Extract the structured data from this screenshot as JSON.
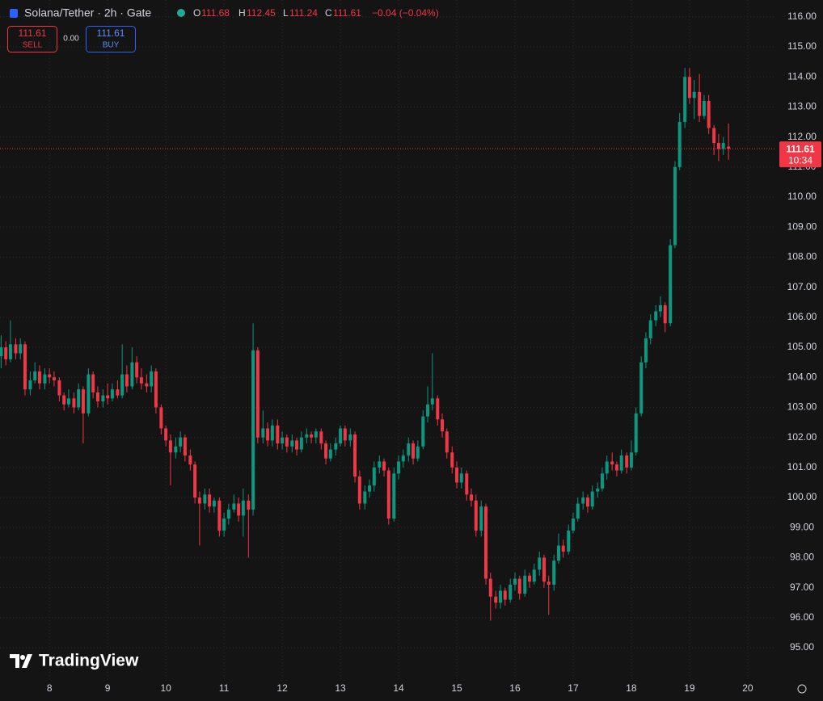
{
  "header": {
    "symbol": "Solana/Tether · 2h · Gate",
    "o_label": "O",
    "open": "111.68",
    "h_label": "H",
    "high": "112.45",
    "l_label": "L",
    "low": "111.24",
    "c_label": "C",
    "close": "111.61",
    "change": "−0.04 (−0.04%)",
    "sell_price": "111.61",
    "sell": "SELL",
    "spread": "0.00",
    "buy_price": "111.61",
    "buy": "BUY",
    "logo": "TradingView"
  },
  "chart_data": {
    "type": "candlestick",
    "up_color": "#089981",
    "down_color": "#f23645",
    "grid": true,
    "xlim": [
      7.15,
      20.46
    ],
    "ylim": [
      93.9,
      116.56
    ],
    "xticks": [
      8,
      9,
      10,
      11,
      12,
      13,
      14,
      15,
      16,
      17,
      18,
      19,
      20
    ],
    "yticks": [
      {
        "value": 95,
        "label": "95.00"
      },
      {
        "value": 96,
        "label": "96.00"
      },
      {
        "value": 97,
        "label": "97.00"
      },
      {
        "value": 98,
        "label": "98.00"
      },
      {
        "value": 99,
        "label": "99.00"
      },
      {
        "value": 100,
        "label": "100.00"
      },
      {
        "value": 101,
        "label": "101.00"
      },
      {
        "value": 102,
        "label": "102.00"
      },
      {
        "value": 103,
        "label": "103.00"
      },
      {
        "value": 104,
        "label": "104.00"
      },
      {
        "value": 105,
        "label": "105.00"
      },
      {
        "value": 106,
        "label": "106.00"
      },
      {
        "value": 107,
        "label": "107.00"
      },
      {
        "value": 108,
        "label": "108.00"
      },
      {
        "value": 109,
        "label": "109.00"
      },
      {
        "value": 110,
        "label": "110.00"
      },
      {
        "value": 111,
        "label": "111.00"
      },
      {
        "value": 112,
        "label": "112.00"
      },
      {
        "value": 113,
        "label": "113.00"
      },
      {
        "value": 114,
        "label": "114.00"
      },
      {
        "value": 115,
        "label": "115.00"
      },
      {
        "value": 116,
        "label": "116.00"
      }
    ],
    "last_price": {
      "value": 111.61,
      "label": "111.61"
    },
    "countdown": "10:34",
    "x": [
      7.17,
      7.25,
      7.33,
      7.42,
      7.5,
      7.58,
      7.67,
      7.75,
      7.83,
      7.92,
      8,
      8.08,
      8.17,
      8.25,
      8.33,
      8.42,
      8.5,
      8.58,
      8.67,
      8.75,
      8.83,
      8.92,
      9,
      9.08,
      9.17,
      9.25,
      9.33,
      9.42,
      9.5,
      9.58,
      9.67,
      9.75,
      9.83,
      9.92,
      10,
      10.08,
      10.17,
      10.25,
      10.33,
      10.42,
      10.5,
      10.58,
      10.67,
      10.75,
      10.83,
      10.92,
      11,
      11.08,
      11.17,
      11.25,
      11.33,
      11.42,
      11.5,
      11.58,
      11.67,
      11.75,
      11.83,
      11.92,
      12,
      12.08,
      12.17,
      12.25,
      12.33,
      12.42,
      12.5,
      12.58,
      12.67,
      12.75,
      12.83,
      12.92,
      13,
      13.08,
      13.17,
      13.25,
      13.33,
      13.42,
      13.5,
      13.58,
      13.67,
      13.75,
      13.83,
      13.92,
      14,
      14.08,
      14.17,
      14.25,
      14.33,
      14.42,
      14.5,
      14.58,
      14.67,
      14.75,
      14.83,
      14.92,
      15,
      15.08,
      15.17,
      15.25,
      15.33,
      15.42,
      15.5,
      15.58,
      15.67,
      15.75,
      15.83,
      15.92,
      16,
      16.08,
      16.17,
      16.25,
      16.33,
      16.42,
      16.5,
      16.58,
      16.67,
      16.75,
      16.83,
      16.92,
      17,
      17.08,
      17.17,
      17.25,
      17.33,
      17.42,
      17.5,
      17.58,
      17.67,
      17.75,
      17.83,
      17.92,
      18,
      18.08,
      18.17,
      18.25,
      18.33,
      18.42,
      18.5,
      18.58,
      18.67,
      18.75,
      18.83,
      18.92,
      19,
      19.08,
      19.17,
      19.25,
      19.33,
      19.42,
      19.5,
      19.58,
      19.67
    ],
    "ohlc": [
      [
        104.7,
        105.4,
        104.3,
        105.0
      ],
      [
        105.0,
        105.2,
        104.4,
        104.6
      ],
      [
        104.6,
        105.9,
        104.5,
        105.1
      ],
      [
        105.1,
        105.3,
        104.6,
        104.8
      ],
      [
        104.8,
        105.3,
        104.6,
        105.1
      ],
      [
        105.1,
        105.2,
        103.4,
        103.6
      ],
      [
        103.6,
        104.2,
        103.4,
        103.9
      ],
      [
        103.9,
        104.5,
        103.8,
        104.2
      ],
      [
        104.2,
        104.4,
        103.6,
        103.8
      ],
      [
        103.8,
        104.3,
        103.6,
        104.1
      ],
      [
        104.1,
        104.3,
        103.8,
        104.0
      ],
      [
        104.0,
        104.2,
        103.7,
        103.9
      ],
      [
        103.9,
        104.0,
        103.2,
        103.4
      ],
      [
        103.4,
        103.5,
        102.9,
        103.1
      ],
      [
        103.1,
        103.6,
        103.0,
        103.3
      ],
      [
        103.3,
        103.5,
        102.8,
        103.0
      ],
      [
        103.0,
        103.8,
        102.9,
        103.6
      ],
      [
        103.6,
        103.7,
        101.8,
        102.8
      ],
      [
        102.8,
        104.3,
        102.7,
        104.1
      ],
      [
        104.1,
        104.2,
        103.3,
        103.5
      ],
      [
        103.5,
        103.7,
        103.0,
        103.2
      ],
      [
        103.2,
        103.6,
        103.0,
        103.4
      ],
      [
        103.4,
        103.8,
        103.1,
        103.3
      ],
      [
        103.3,
        103.8,
        103.2,
        103.6
      ],
      [
        103.6,
        103.9,
        103.3,
        103.4
      ],
      [
        103.4,
        105.1,
        103.3,
        104.1
      ],
      [
        104.1,
        104.4,
        103.5,
        103.7
      ],
      [
        103.7,
        105.0,
        103.6,
        104.5
      ],
      [
        104.5,
        104.7,
        103.8,
        104.0
      ],
      [
        104.0,
        104.3,
        103.6,
        103.8
      ],
      [
        103.8,
        104.1,
        103.5,
        103.7
      ],
      [
        103.7,
        104.4,
        103.5,
        104.2
      ],
      [
        104.2,
        104.3,
        102.8,
        103.0
      ],
      [
        103.0,
        103.1,
        102.1,
        102.3
      ],
      [
        102.3,
        102.4,
        101.7,
        101.9
      ],
      [
        101.9,
        102.1,
        100.4,
        101.5
      ],
      [
        101.5,
        102.0,
        101.3,
        101.7
      ],
      [
        101.7,
        102.2,
        101.5,
        102.0
      ],
      [
        102.0,
        102.1,
        101.2,
        101.4
      ],
      [
        101.4,
        101.6,
        100.9,
        101.1
      ],
      [
        101.1,
        101.2,
        99.8,
        100.0
      ],
      [
        100.0,
        100.2,
        98.4,
        99.8
      ],
      [
        99.8,
        100.3,
        99.6,
        100.1
      ],
      [
        100.1,
        100.3,
        99.5,
        99.7
      ],
      [
        99.7,
        100.0,
        99.5,
        99.9
      ],
      [
        99.9,
        100.0,
        98.7,
        98.9
      ],
      [
        98.9,
        99.5,
        98.7,
        99.3
      ],
      [
        99.3,
        99.8,
        99.1,
        99.6
      ],
      [
        99.6,
        100.1,
        99.5,
        99.8
      ],
      [
        99.8,
        100.0,
        99.2,
        99.4
      ],
      [
        99.4,
        100.3,
        98.7,
        99.9
      ],
      [
        99.9,
        100.1,
        98.0,
        99.6
      ],
      [
        99.6,
        105.8,
        99.4,
        104.9
      ],
      [
        104.9,
        105.0,
        101.8,
        102.0
      ],
      [
        102.0,
        102.9,
        101.8,
        102.3
      ],
      [
        102.3,
        102.5,
        101.7,
        101.9
      ],
      [
        101.9,
        102.6,
        101.7,
        102.4
      ],
      [
        102.4,
        102.6,
        101.6,
        101.8
      ],
      [
        101.8,
        102.2,
        101.6,
        102.0
      ],
      [
        102.0,
        102.1,
        101.5,
        101.7
      ],
      [
        101.7,
        102.1,
        101.5,
        101.9
      ],
      [
        101.9,
        102.0,
        101.4,
        101.6
      ],
      [
        101.6,
        102.2,
        101.5,
        102.0
      ],
      [
        102.0,
        102.3,
        101.8,
        102.1
      ],
      [
        102.1,
        102.2,
        101.8,
        102.0
      ],
      [
        102.0,
        102.3,
        101.8,
        102.2
      ],
      [
        102.2,
        102.3,
        101.6,
        101.8
      ],
      [
        101.8,
        101.9,
        101.1,
        101.3
      ],
      [
        101.3,
        101.8,
        101.2,
        101.6
      ],
      [
        101.6,
        102.0,
        101.4,
        101.8
      ],
      [
        101.8,
        102.4,
        101.7,
        102.3
      ],
      [
        102.3,
        102.4,
        101.7,
        101.9
      ],
      [
        101.9,
        102.3,
        101.7,
        102.1
      ],
      [
        102.1,
        102.2,
        100.5,
        100.7
      ],
      [
        100.7,
        100.9,
        99.6,
        99.8
      ],
      [
        99.8,
        100.4,
        99.6,
        100.2
      ],
      [
        100.2,
        100.6,
        100.0,
        100.4
      ],
      [
        100.4,
        101.2,
        100.2,
        101.0
      ],
      [
        101.0,
        101.4,
        100.8,
        101.2
      ],
      [
        101.2,
        101.3,
        100.7,
        100.9
      ],
      [
        100.9,
        101.0,
        99.1,
        99.3
      ],
      [
        99.3,
        101.0,
        99.2,
        100.8
      ],
      [
        100.8,
        101.4,
        100.6,
        101.2
      ],
      [
        101.2,
        101.6,
        101.0,
        101.4
      ],
      [
        101.4,
        102.0,
        101.2,
        101.8
      ],
      [
        101.8,
        101.9,
        101.1,
        101.3
      ],
      [
        101.3,
        101.9,
        101.2,
        101.7
      ],
      [
        101.7,
        102.9,
        101.6,
        102.7
      ],
      [
        102.7,
        103.7,
        102.5,
        103.1
      ],
      [
        103.1,
        104.8,
        102.9,
        103.3
      ],
      [
        103.3,
        103.4,
        102.4,
        102.6
      ],
      [
        102.6,
        102.8,
        102.0,
        102.2
      ],
      [
        102.2,
        102.3,
        101.3,
        101.5
      ],
      [
        101.5,
        101.7,
        100.8,
        101.0
      ],
      [
        101.0,
        101.2,
        100.3,
        100.5
      ],
      [
        100.5,
        101.0,
        100.3,
        100.8
      ],
      [
        100.8,
        100.9,
        99.9,
        100.1
      ],
      [
        100.1,
        100.3,
        99.7,
        99.9
      ],
      [
        99.9,
        100.1,
        98.7,
        98.9
      ],
      [
        98.9,
        99.9,
        98.7,
        99.7
      ],
      [
        99.7,
        99.8,
        97.1,
        97.3
      ],
      [
        97.3,
        97.5,
        95.9,
        96.7
      ],
      [
        96.7,
        96.9,
        96.3,
        96.5
      ],
      [
        96.5,
        97.1,
        96.3,
        96.9
      ],
      [
        96.9,
        97.0,
        96.4,
        96.6
      ],
      [
        96.6,
        97.3,
        96.5,
        97.1
      ],
      [
        97.1,
        97.5,
        96.9,
        97.3
      ],
      [
        97.3,
        97.4,
        96.6,
        96.8
      ],
      [
        96.8,
        97.6,
        96.7,
        97.4
      ],
      [
        97.4,
        97.5,
        97.0,
        97.2
      ],
      [
        97.2,
        97.8,
        97.1,
        97.6
      ],
      [
        97.6,
        98.2,
        97.4,
        98.0
      ],
      [
        98.0,
        98.1,
        97.0,
        97.2
      ],
      [
        97.2,
        97.4,
        96.1,
        97.1
      ],
      [
        97.1,
        98.1,
        96.9,
        97.9
      ],
      [
        97.9,
        98.8,
        97.8,
        98.4
      ],
      [
        98.4,
        98.6,
        98.0,
        98.2
      ],
      [
        98.2,
        99.1,
        98.1,
        98.9
      ],
      [
        98.9,
        99.5,
        98.8,
        99.3
      ],
      [
        99.3,
        100.0,
        99.2,
        99.8
      ],
      [
        99.8,
        100.2,
        99.6,
        100.0
      ],
      [
        100.0,
        100.1,
        99.5,
        99.7
      ],
      [
        99.7,
        100.4,
        99.6,
        100.2
      ],
      [
        100.2,
        100.5,
        100.0,
        100.3
      ],
      [
        100.3,
        101.0,
        100.2,
        100.8
      ],
      [
        100.8,
        101.4,
        100.6,
        101.2
      ],
      [
        101.2,
        101.5,
        100.9,
        101.1
      ],
      [
        101.1,
        101.2,
        100.7,
        100.9
      ],
      [
        100.9,
        101.6,
        100.8,
        101.4
      ],
      [
        101.4,
        101.5,
        100.8,
        101.0
      ],
      [
        101.0,
        101.9,
        100.9,
        101.5
      ],
      [
        101.5,
        103.0,
        101.4,
        102.8
      ],
      [
        102.8,
        104.7,
        102.7,
        104.5
      ],
      [
        104.5,
        105.5,
        104.3,
        105.3
      ],
      [
        105.3,
        106.1,
        105.1,
        105.9
      ],
      [
        105.9,
        106.4,
        105.7,
        106.2
      ],
      [
        106.2,
        106.7,
        106.0,
        106.4
      ],
      [
        106.4,
        106.5,
        105.5,
        105.8
      ],
      [
        105.8,
        108.6,
        105.7,
        108.4
      ],
      [
        108.4,
        111.2,
        108.3,
        111.0
      ],
      [
        111.0,
        112.8,
        110.9,
        112.5
      ],
      [
        112.5,
        114.3,
        112.3,
        114.0
      ],
      [
        114.0,
        114.3,
        113.1,
        113.3
      ],
      [
        113.3,
        113.9,
        112.6,
        113.5
      ],
      [
        113.5,
        114.1,
        112.5,
        112.7
      ],
      [
        112.7,
        113.4,
        112.6,
        113.2
      ],
      [
        113.2,
        113.4,
        112.1,
        112.3
      ],
      [
        112.3,
        112.4,
        111.4,
        111.8
      ],
      [
        111.8,
        112.1,
        111.2,
        111.6
      ],
      [
        111.6,
        112.0,
        111.4,
        111.8
      ],
      [
        111.68,
        112.45,
        111.24,
        111.61
      ]
    ]
  }
}
